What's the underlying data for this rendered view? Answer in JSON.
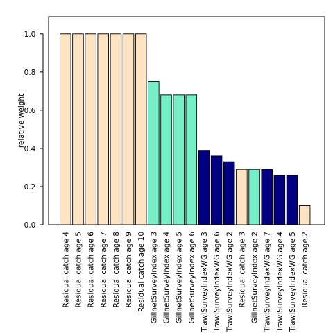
{
  "chart_data": {
    "type": "bar",
    "ylabel": "relative weight",
    "xlabel": "",
    "ylim": [
      0.0,
      1.09
    ],
    "yticks": [
      "0.0",
      "0.2",
      "0.4",
      "0.6",
      "0.8",
      "1.0"
    ],
    "colors": {
      "Residual catch": "#ffe4c4",
      "GillnetSurveyIndex": "#76eec6",
      "TrawlSurveyIndexWG": "#000080"
    },
    "bars": [
      {
        "label": "Residual catch age 4",
        "group": "Residual catch",
        "value": 1.0
      },
      {
        "label": "Residual catch age 5",
        "group": "Residual catch",
        "value": 1.0
      },
      {
        "label": "Residual catch age 6",
        "group": "Residual catch",
        "value": 1.0
      },
      {
        "label": "Residual catch age 7",
        "group": "Residual catch",
        "value": 1.0
      },
      {
        "label": "Residual catch age 8",
        "group": "Residual catch",
        "value": 1.0
      },
      {
        "label": "Residual catch age 9",
        "group": "Residual catch",
        "value": 1.0
      },
      {
        "label": "Residual catch age 10",
        "group": "Residual catch",
        "value": 1.0
      },
      {
        "label": "GillnetSurveyIndex age 3",
        "group": "GillnetSurveyIndex",
        "value": 0.75
      },
      {
        "label": "GillnetSurveyIndex age 4",
        "group": "GillnetSurveyIndex",
        "value": 0.68
      },
      {
        "label": "GillnetSurveyIndex age 5",
        "group": "GillnetSurveyIndex",
        "value": 0.68
      },
      {
        "label": "GillnetSurveyIndex age 6",
        "group": "GillnetSurveyIndex",
        "value": 0.68
      },
      {
        "label": "TrawlSurveyIndexWG age 3",
        "group": "TrawlSurveyIndexWG",
        "value": 0.39
      },
      {
        "label": "TrawlSurveyIndexWG age 6",
        "group": "TrawlSurveyIndexWG",
        "value": 0.36
      },
      {
        "label": "TrawlSurveyIndexWG age 2",
        "group": "TrawlSurveyIndexWG",
        "value": 0.33
      },
      {
        "label": "Residual catch age 3",
        "group": "Residual catch",
        "value": 0.29
      },
      {
        "label": "GillnetSurveyIndex age 2",
        "group": "GillnetSurveyIndex",
        "value": 0.29
      },
      {
        "label": "TrawlSurveyIndexWG age 7",
        "group": "TrawlSurveyIndexWG",
        "value": 0.29
      },
      {
        "label": "TrawlSurveyIndexWG age 4",
        "group": "TrawlSurveyIndexWG",
        "value": 0.26
      },
      {
        "label": "TrawlSurveyIndexWG age 5",
        "group": "TrawlSurveyIndexWG",
        "value": 0.26
      },
      {
        "label": "Residual catch age 2",
        "group": "Residual catch",
        "value": 0.1
      }
    ]
  }
}
